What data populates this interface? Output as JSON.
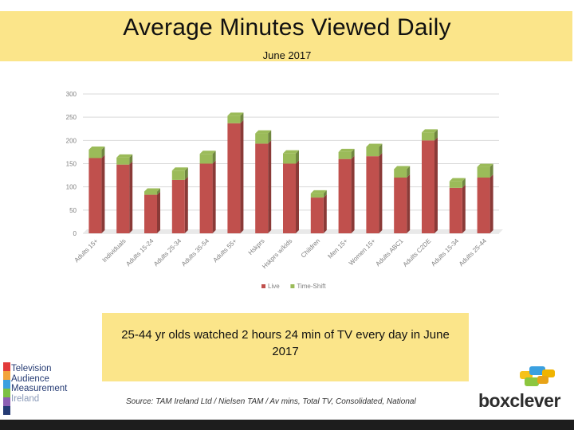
{
  "header": {
    "title": "Average Minutes Viewed Daily",
    "subtitle": "June 2017"
  },
  "chart_data": {
    "type": "bar",
    "stacked": true,
    "categories": [
      "Adults 15+",
      "Individuals",
      "Adults 15-24",
      "Adults 25-34",
      "Adults 35-54",
      "Adults 55+",
      "Hskprs",
      "Hskprs w/kids",
      "Children",
      "Men 15+",
      "Women 15+",
      "Adults ABC1",
      "Adults C2DE",
      "Adults 15-34",
      "Adults 25-44"
    ],
    "series": [
      {
        "name": "Live",
        "color": "#c0504d",
        "values": [
          162,
          148,
          83,
          115,
          150,
          237,
          193,
          150,
          77,
          160,
          166,
          120,
          200,
          98,
          120
        ]
      },
      {
        "name": "Time-Shift",
        "color": "#9bbb59",
        "values": [
          18,
          15,
          7,
          20,
          21,
          16,
          22,
          22,
          9,
          15,
          20,
          18,
          17,
          14,
          23
        ]
      }
    ],
    "yticks": [
      0,
      50,
      100,
      150,
      200,
      250,
      300
    ],
    "ylim": [
      0,
      300
    ],
    "grid": true,
    "legend_position": "bottom"
  },
  "callout": {
    "text": "25-44 yr olds watched 2 hours 24 min of TV every day in June 2017"
  },
  "source": "Source: TAM Ireland Ltd / Nielsen TAM / Av mins, Total TV, Consolidated, National",
  "logos": {
    "tam": [
      "Television",
      "Audience",
      "Measurement",
      "Ireland"
    ],
    "tam_colors": [
      "#e23a3a",
      "#f2a33a",
      "#3a9fe0",
      "#7cc043",
      "#8c5fb3",
      "#243a73"
    ],
    "boxclever": "boxclever"
  }
}
